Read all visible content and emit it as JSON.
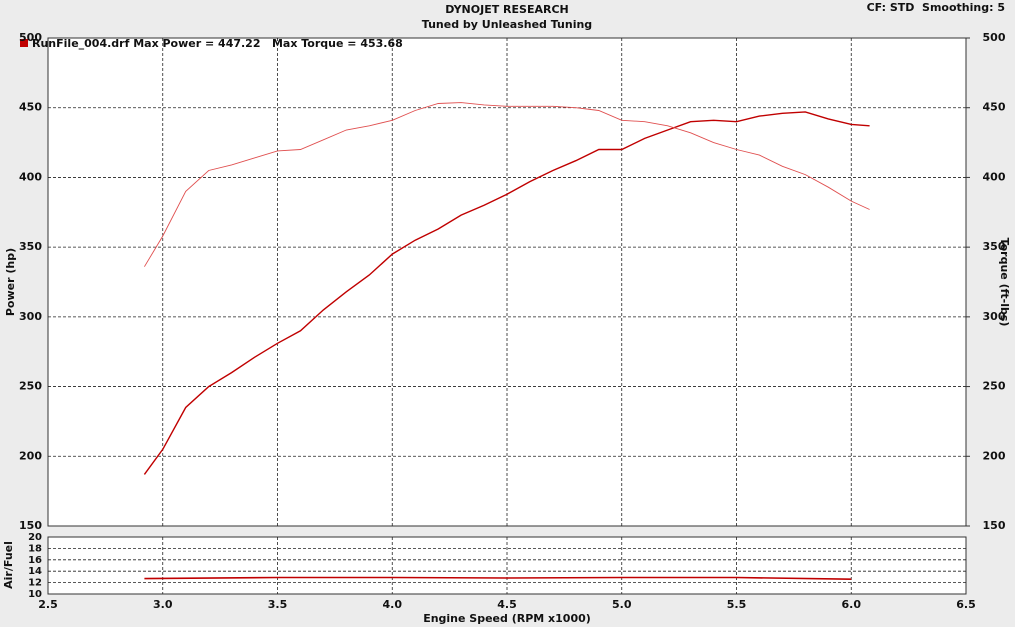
{
  "chart_data": [
    {
      "type": "line",
      "title": "DYNOJET RESEARCH",
      "subtitle": "Tuned by Unleashed Tuning",
      "settings_text": "CF: STD  Smoothing: 5",
      "legend": "RunFile_004.drf Max Power = 447.22   Max Torque = 453.68",
      "y_label": "Power (hp)",
      "y2_label": "Torque (ft-lbs)",
      "x": [
        2.92,
        3.0,
        3.1,
        3.2,
        3.3,
        3.4,
        3.5,
        3.6,
        3.7,
        3.8,
        3.9,
        4.0,
        4.1,
        4.2,
        4.3,
        4.4,
        4.5,
        4.6,
        4.7,
        4.8,
        4.9,
        5.0,
        5.1,
        5.2,
        5.3,
        5.4,
        5.5,
        5.6,
        5.7,
        5.8,
        5.9,
        6.0,
        6.08
      ],
      "series": [
        {
          "color": "#c00000",
          "width": 1.4,
          "values": [
            187,
            205,
            235,
            250,
            260,
            271,
            281,
            290,
            305,
            318,
            330,
            345,
            355,
            363,
            373,
            380,
            388,
            397,
            405,
            412,
            420,
            420,
            428,
            434,
            440,
            441,
            440,
            444,
            446,
            447,
            442,
            438,
            437
          ]
        },
        {
          "color": "#e05050",
          "width": 0.9,
          "axis": "y2",
          "values": [
            336,
            358,
            390,
            405,
            409,
            414,
            419,
            420,
            427,
            434,
            437,
            441,
            448,
            453,
            453.7,
            452,
            451,
            451,
            451,
            450,
            448,
            441,
            440,
            437,
            432,
            425,
            420,
            416,
            408,
            402,
            393,
            383,
            377
          ]
        }
      ],
      "xlim": [
        2.5,
        6.5
      ],
      "xticks": [
        2.5,
        3,
        3.5,
        4,
        4.5,
        5,
        5.5,
        6,
        6.5
      ],
      "ylim": [
        150,
        500
      ],
      "yticks": [
        150,
        200,
        250,
        300,
        350,
        400,
        450,
        500
      ],
      "y2lim": [
        150,
        500
      ],
      "y2ticks": [
        150,
        200,
        250,
        300,
        350,
        400,
        450,
        500
      ],
      "grid": true
    },
    {
      "type": "line",
      "x_label": "Engine Speed (RPM x1000)",
      "y_label": "Air/Fuel",
      "x": [
        2.92,
        3.5,
        4.0,
        4.5,
        5.0,
        5.5,
        6.0
      ],
      "series": [
        {
          "color": "#c00000",
          "width": 1.6,
          "values": [
            12.7,
            12.9,
            12.9,
            12.8,
            12.9,
            12.9,
            12.6
          ]
        }
      ],
      "xlim": [
        2.5,
        6.5
      ],
      "xticks": [
        2.5,
        {
          "value": 3,
          "label": "3.0"
        },
        3.5,
        {
          "value": 4,
          "label": "4.0"
        },
        4.5,
        {
          "value": 5,
          "label": "5.0"
        },
        5.5,
        {
          "value": 6,
          "label": "6.0"
        },
        6.5
      ],
      "ylim": [
        10,
        20
      ],
      "yticks": [
        10,
        12,
        14,
        16,
        18,
        20
      ],
      "grid": true
    }
  ]
}
